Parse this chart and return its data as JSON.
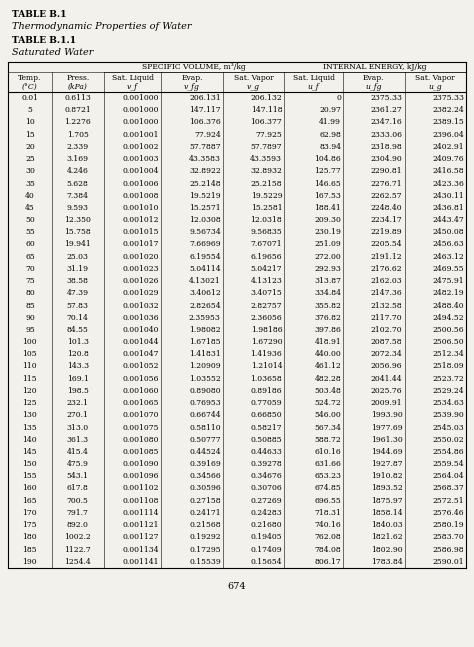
{
  "title1": "TABLE B.1",
  "title2": "Thermodynamic Properties of Water",
  "title3": "TABLE B.1.1",
  "title4": "Saturated Water",
  "group1_label": "SPECIFIC VOLUME, m³/kg",
  "group2_label": "INTERNAL ENERGY, kJ/kg",
  "col_headers": [
    "Temp.\n(°C)",
    "Press.\n(kPa)",
    "Sat. Liquid\nv_f",
    "Evap.\nv_fg",
    "Sat. Vapor\nv_g",
    "Sat. Liquid\nu_f",
    "Evap.\nu_fg",
    "Sat. Vapor\nu_g"
  ],
  "footer": "674",
  "bg_color": "#f2f1ec",
  "rows": [
    [
      "0.01",
      "0.6113",
      "0.001000",
      "206.131",
      "206.132",
      "0",
      "2375.33",
      "2375.33"
    ],
    [
      "5",
      "0.8721",
      "0.001000",
      "147.117",
      "147.118",
      "20.97",
      "2361.27",
      "2382.24"
    ],
    [
      "10",
      "1.2276",
      "0.001000",
      "106.376",
      "106.377",
      "41.99",
      "2347.16",
      "2389.15"
    ],
    [
      "15",
      "1.705",
      "0.001001",
      "77.924",
      "77.925",
      "62.98",
      "2333.06",
      "2396.04"
    ],
    [
      "20",
      "2.339",
      "0.001002",
      "57.7887",
      "57.7897",
      "83.94",
      "2318.98",
      "2402.91"
    ],
    [
      "25",
      "3.169",
      "0.001003",
      "43.3583",
      "43.3593",
      "104.86",
      "2304.90",
      "2409.76"
    ],
    [
      "30",
      "4.246",
      "0.001004",
      "32.8922",
      "32.8932",
      "125.77",
      "2290.81",
      "2416.58"
    ],
    [
      "35",
      "5.628",
      "0.001006",
      "25.2148",
      "25.2158",
      "146.65",
      "2276.71",
      "2423.36"
    ],
    [
      "40",
      "7.384",
      "0.001008",
      "19.5219",
      "19.5229",
      "167.53",
      "2262.57",
      "2430.11"
    ],
    [
      "45",
      "9.593",
      "0.001010",
      "15.2571",
      "15.2581",
      "188.41",
      "2248.40",
      "2436.81"
    ],
    [
      "50",
      "12.350",
      "0.001012",
      "12.0308",
      "12.0318",
      "209.30",
      "2234.17",
      "2443.47"
    ],
    [
      "55",
      "15.758",
      "0.001015",
      "9.56734",
      "9.56835",
      "230.19",
      "2219.89",
      "2450.08"
    ],
    [
      "60",
      "19.941",
      "0.001017",
      "7.66969",
      "7.67071",
      "251.09",
      "2205.54",
      "2456.63"
    ],
    [
      "65",
      "25.03",
      "0.001020",
      "6.19554",
      "6.19656",
      "272.00",
      "2191.12",
      "2463.12"
    ],
    [
      "70",
      "31.19",
      "0.001023",
      "5.04114",
      "5.04217",
      "292.93",
      "2176.62",
      "2469.55"
    ],
    [
      "75",
      "38.58",
      "0.001026",
      "4.13021",
      "4.13123",
      "313.87",
      "2162.03",
      "2475.91"
    ],
    [
      "80",
      "47.39",
      "0.001029",
      "3.40612",
      "3.40715",
      "334.84",
      "2147.36",
      "2482.19"
    ],
    [
      "85",
      "57.83",
      "0.001032",
      "2.82654",
      "2.82757",
      "355.82",
      "2132.58",
      "2488.40"
    ],
    [
      "90",
      "70.14",
      "0.001036",
      "2.35953",
      "2.36056",
      "376.82",
      "2117.70",
      "2494.52"
    ],
    [
      "95",
      "84.55",
      "0.001040",
      "1.98082",
      "1.98186",
      "397.86",
      "2102.70",
      "2500.56"
    ],
    [
      "100",
      "101.3",
      "0.001044",
      "1.67185",
      "1.67290",
      "418.91",
      "2087.58",
      "2506.50"
    ],
    [
      "105",
      "120.8",
      "0.001047",
      "1.41831",
      "1.41936",
      "440.00",
      "2072.34",
      "2512.34"
    ],
    [
      "110",
      "143.3",
      "0.001052",
      "1.20909",
      "1.21014",
      "461.12",
      "2056.96",
      "2518.09"
    ],
    [
      "115",
      "169.1",
      "0.001056",
      "1.03552",
      "1.03658",
      "482.28",
      "2041.44",
      "2523.72"
    ],
    [
      "120",
      "198.5",
      "0.001060",
      "0.89080",
      "0.89186",
      "503.48",
      "2025.76",
      "2529.24"
    ],
    [
      "125",
      "232.1",
      "0.001065",
      "0.76953",
      "0.77059",
      "524.72",
      "2009.91",
      "2534.63"
    ],
    [
      "130",
      "270.1",
      "0.001070",
      "0.66744",
      "0.66850",
      "546.00",
      "1993.90",
      "2539.90"
    ],
    [
      "135",
      "313.0",
      "0.001075",
      "0.58110",
      "0.58217",
      "567.34",
      "1977.69",
      "2545.03"
    ],
    [
      "140",
      "361.3",
      "0.001080",
      "0.50777",
      "0.50885",
      "588.72",
      "1961.30",
      "2550.02"
    ],
    [
      "145",
      "415.4",
      "0.001085",
      "0.44524",
      "0.44633",
      "610.16",
      "1944.69",
      "2554.86"
    ],
    [
      "150",
      "475.9",
      "0.001090",
      "0.39169",
      "0.39278",
      "631.66",
      "1927.87",
      "2559.54"
    ],
    [
      "155",
      "543.1",
      "0.001096",
      "0.34566",
      "0.34676",
      "653.23",
      "1910.82",
      "2564.04"
    ],
    [
      "160",
      "617.8",
      "0.001102",
      "0.30596",
      "0.30706",
      "674.85",
      "1893.52",
      "2568.37"
    ],
    [
      "165",
      "700.5",
      "0.001108",
      "0.27158",
      "0.27269",
      "696.55",
      "1875.97",
      "2572.51"
    ],
    [
      "170",
      "791.7",
      "0.001114",
      "0.24171",
      "0.24283",
      "718.31",
      "1858.14",
      "2576.46"
    ],
    [
      "175",
      "892.0",
      "0.001121",
      "0.21568",
      "0.21680",
      "740.16",
      "1840.03",
      "2580.19"
    ],
    [
      "180",
      "1002.2",
      "0.001127",
      "0.19292",
      "0.19405",
      "762.08",
      "1821.62",
      "2583.70"
    ],
    [
      "185",
      "1122.7",
      "0.001134",
      "0.17295",
      "0.17409",
      "784.08",
      "1802.90",
      "2586.98"
    ],
    [
      "190",
      "1254.4",
      "0.001141",
      "0.15539",
      "0.15654",
      "806.17",
      "1783.84",
      "2590.01"
    ]
  ]
}
